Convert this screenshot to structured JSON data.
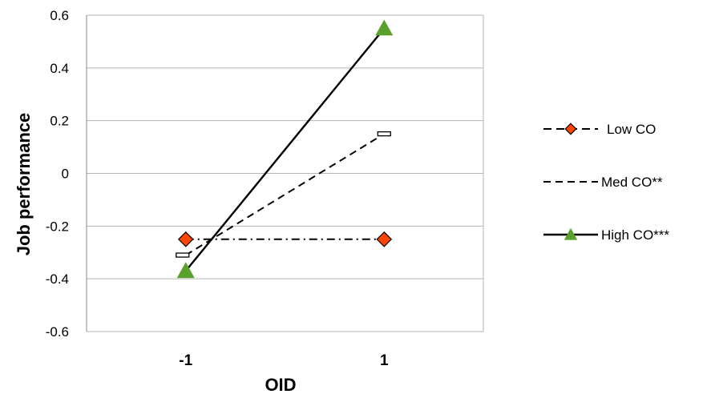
{
  "chart_data": {
    "type": "line",
    "title": "",
    "xlabel": "OID",
    "ylabel": "Job performance",
    "categories": [
      "-1",
      "1"
    ],
    "ylim": [
      -0.6,
      0.6
    ],
    "yticks": [
      "0.6",
      "0.4",
      "0.2",
      "0",
      "-0.2",
      "-0.4",
      "-0.6"
    ],
    "ytick_values": [
      0.6,
      0.4,
      0.2,
      0,
      -0.2,
      -0.4,
      -0.6
    ],
    "grid": true,
    "legend_position": "right",
    "series": [
      {
        "name": "Low CO",
        "values": [
          -0.25,
          -0.25
        ],
        "color": "#ff4500",
        "marker": "diamond",
        "line": "dash-dot"
      },
      {
        "name": "Med CO**",
        "values": [
          -0.31,
          0.15
        ],
        "color": "#000000",
        "marker": "open-rect",
        "line": "dashed"
      },
      {
        "name": "High CO***",
        "values": [
          -0.37,
          0.55
        ],
        "color": "#5aa02c",
        "marker": "triangle",
        "line": "solid"
      }
    ]
  }
}
